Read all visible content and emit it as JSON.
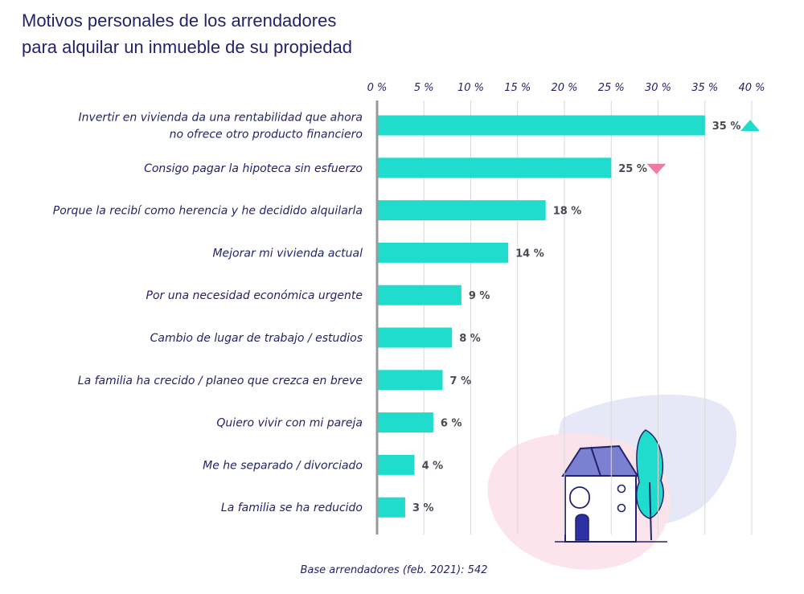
{
  "chart_data": {
    "type": "bar",
    "orientation": "horizontal",
    "title_lines": [
      "Motivos personales de los arrendadores",
      "para alquilar un inmueble de su propiedad"
    ],
    "categories": [
      [
        "Invertir en vivienda da una rentabilidad que ahora",
        "no ofrece otro producto financiero"
      ],
      [
        "Consigo pagar la hipoteca sin esfuerzo"
      ],
      [
        "Porque la recibí como herencia y he decidido alquilarla"
      ],
      [
        "Mejorar mi vivienda actual"
      ],
      [
        "Por una necesidad económica urgente"
      ],
      [
        "Cambio de lugar de trabajo / estudios"
      ],
      [
        "La familia ha crecido / planeo que crezca en breve"
      ],
      [
        "Quiero vivir con mi pareja"
      ],
      [
        "Me he separado / divorciado"
      ],
      [
        "La familia se ha reducido"
      ]
    ],
    "values": [
      35,
      25,
      18,
      14,
      9,
      8,
      7,
      6,
      4,
      3
    ],
    "value_labels": [
      "35 %",
      "25 %",
      "18 %",
      "14 %",
      "9 %",
      "8 %",
      "7 %",
      "6 %",
      "4 %",
      "3 %"
    ],
    "trend": [
      "up",
      "down",
      null,
      null,
      null,
      null,
      null,
      null,
      null,
      null
    ],
    "xlim": [
      0,
      40
    ],
    "xticks": [
      0,
      5,
      10,
      15,
      20,
      25,
      30,
      35,
      40
    ],
    "xtick_labels": [
      "0 %",
      "5 %",
      "10 %",
      "15 %",
      "20 %",
      "25 %",
      "30 %",
      "35 %",
      "40 %"
    ],
    "grid": true,
    "footnote": "Base arrendadores (feb. 2021): 542",
    "colors": {
      "bar": "#1fdccc",
      "up": "#1fdccc",
      "down": "#f07aa6",
      "grid": "#d9d9d9",
      "axis": "#9a9a9a",
      "title": "#23236b"
    }
  }
}
